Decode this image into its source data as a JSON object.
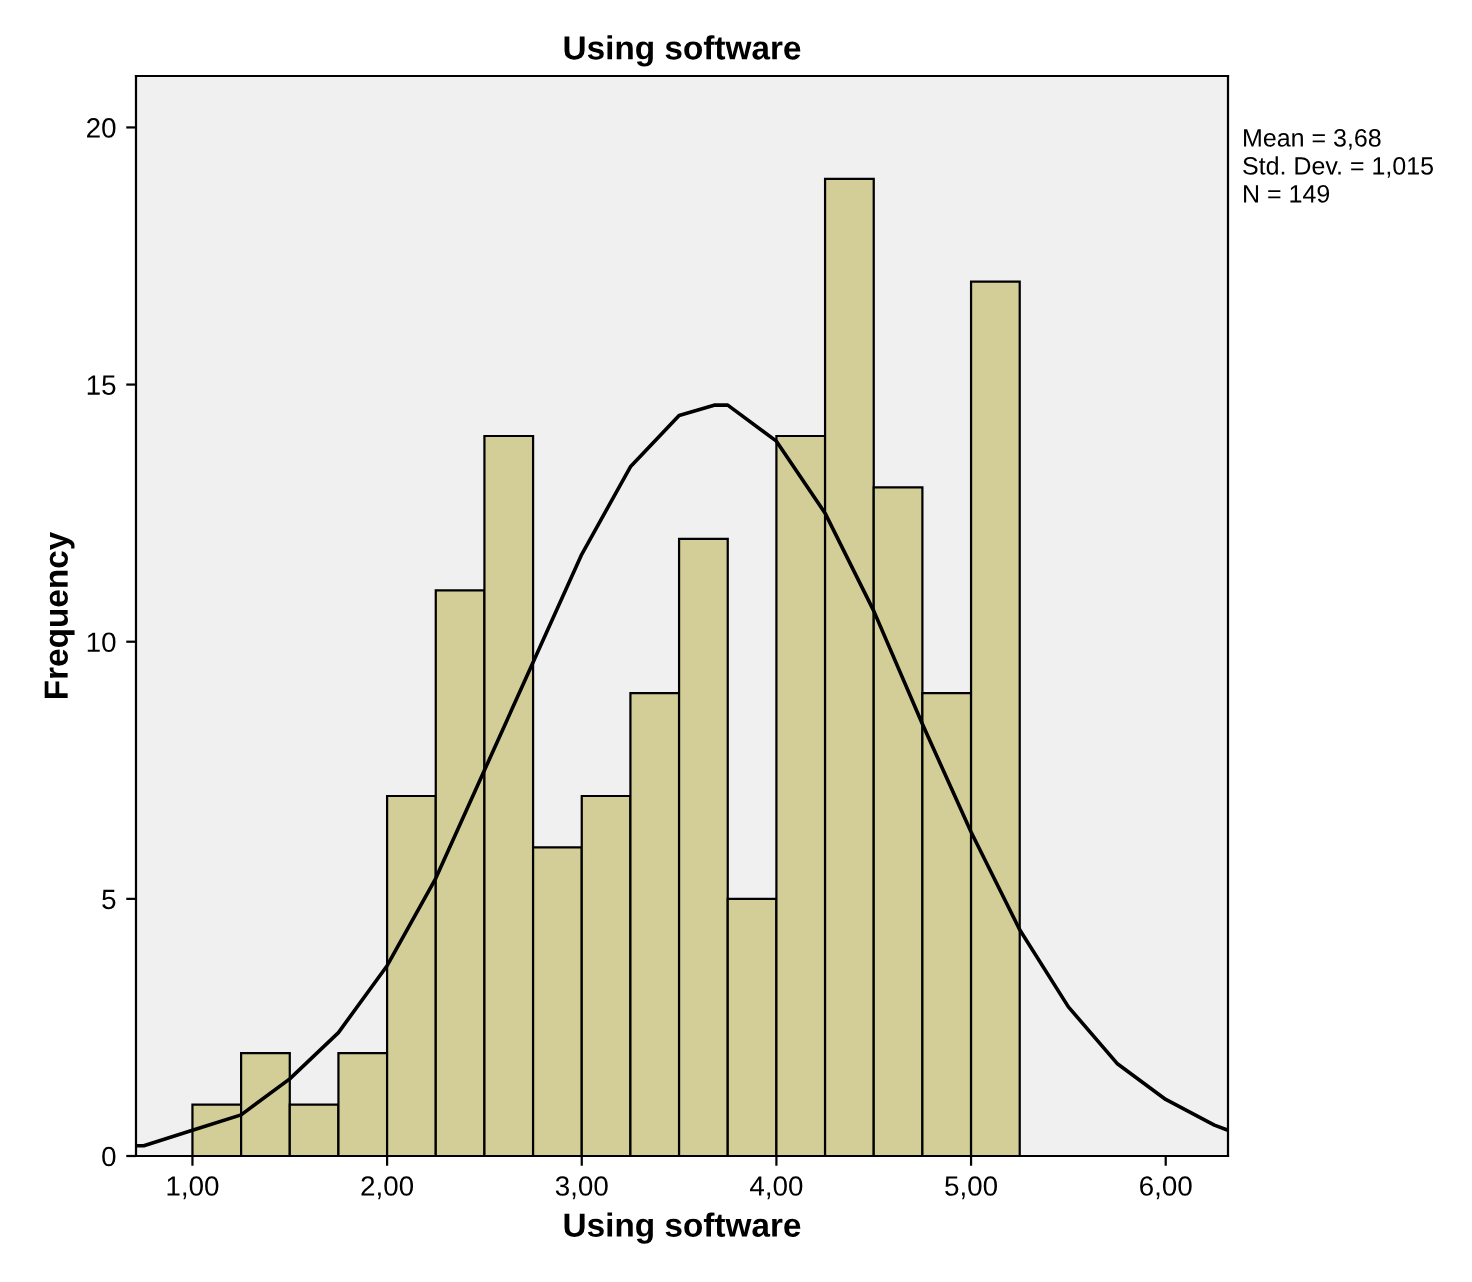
{
  "chart_data": {
    "type": "histogram",
    "title": "Using software",
    "xlabel": "Using software",
    "ylabel": "Frequency",
    "series": [
      {
        "color": "#d3ce97",
        "bins": [
          1.0,
          1.25,
          1.5,
          1.75,
          2.0,
          2.25,
          2.5,
          2.75,
          3.0,
          3.25,
          3.5,
          3.75,
          4.0,
          4.25,
          4.5,
          4.75,
          5.0,
          5.25
        ],
        "values": [
          1,
          2,
          1,
          2,
          7,
          11,
          14,
          6,
          7,
          9,
          12,
          5,
          14,
          19,
          13,
          9,
          17
        ]
      },
      {
        "type": "line",
        "color": "#000000",
        "x": [
          0.71,
          0.75,
          1.0,
          1.25,
          1.5,
          1.75,
          2.0,
          2.25,
          2.5,
          2.75,
          3.0,
          3.25,
          3.5,
          3.68,
          3.75,
          4.0,
          4.25,
          4.5,
          4.75,
          5.0,
          5.25,
          5.5,
          5.75,
          6.0,
          6.25,
          6.32
        ],
        "values": [
          0.2,
          0.2,
          0.5,
          0.8,
          1.5,
          2.4,
          3.7,
          5.4,
          7.5,
          9.6,
          11.7,
          13.4,
          14.4,
          14.6,
          14.6,
          13.9,
          12.5,
          10.6,
          8.4,
          6.3,
          4.4,
          2.9,
          1.8,
          1.1,
          0.6,
          0.5
        ]
      }
    ],
    "xlim": [
      0.71,
      6.32
    ],
    "ylim": [
      0,
      21
    ],
    "xticks": [
      {
        "value": 1,
        "label": "1,00"
      },
      {
        "value": 2,
        "label": "2,00"
      },
      {
        "value": 3,
        "label": "3,00"
      },
      {
        "value": 4,
        "label": "4,00"
      },
      {
        "value": 5,
        "label": "5,00"
      },
      {
        "value": 6,
        "label": "6,00"
      }
    ],
    "yticks": [
      0,
      5,
      10,
      15,
      20
    ],
    "annotations": [
      "Mean = 3,68",
      "Std. Dev. = 1,015",
      "N = 149"
    ],
    "grid": false,
    "legend": false
  }
}
